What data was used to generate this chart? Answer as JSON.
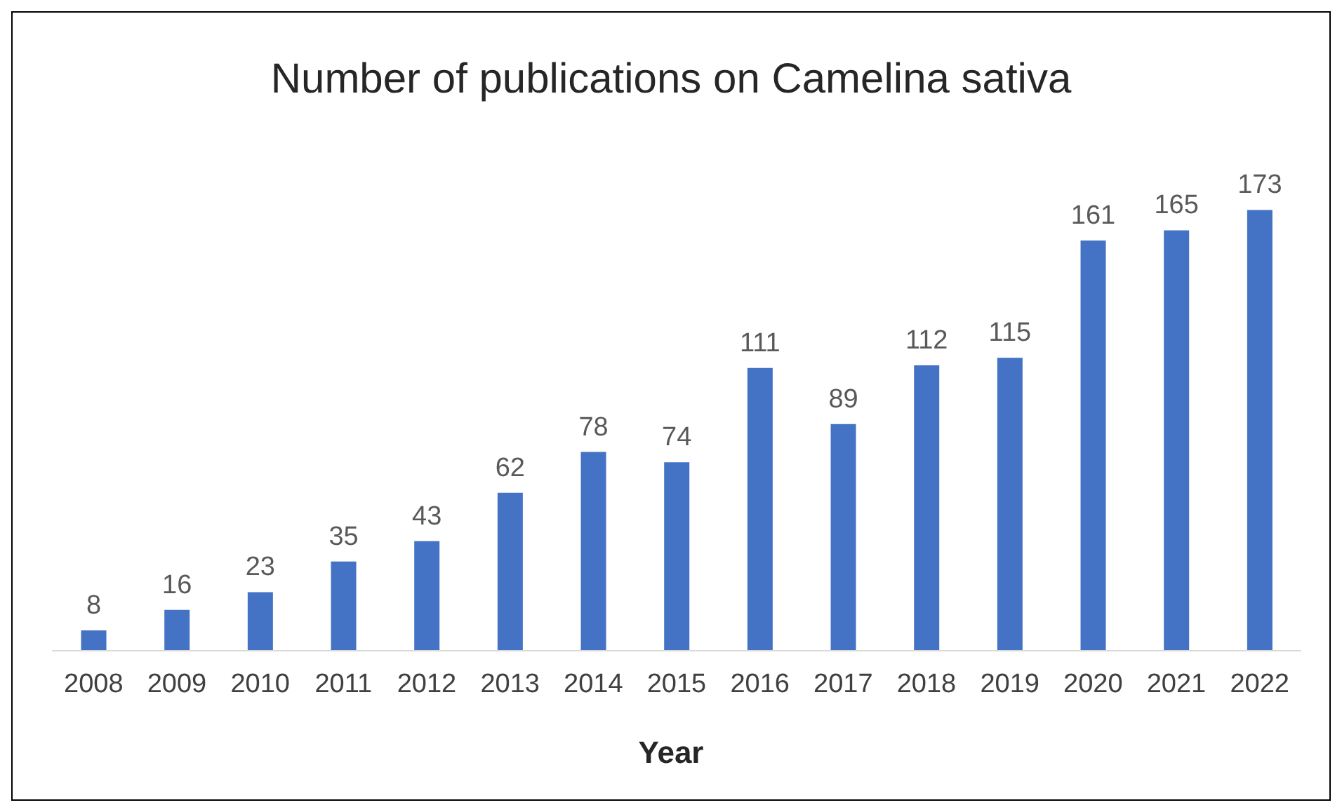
{
  "chart_data": {
    "type": "bar",
    "title": "Number of publications on Camelina sativa",
    "xlabel": "Year",
    "categories": [
      "2008",
      "2009",
      "2010",
      "2011",
      "2012",
      "2013",
      "2014",
      "2015",
      "2016",
      "2017",
      "2018",
      "2019",
      "2020",
      "2021",
      "2022"
    ],
    "values": [
      8,
      16,
      23,
      35,
      43,
      62,
      78,
      74,
      111,
      89,
      112,
      115,
      161,
      165,
      173
    ],
    "color": "#4472c4",
    "data_labels": true
  }
}
